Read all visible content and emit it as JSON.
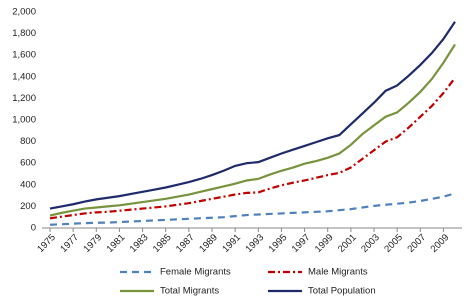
{
  "chart_data": {
    "type": "line",
    "x": [
      1975,
      1976,
      1977,
      1978,
      1979,
      1980,
      1981,
      1982,
      1983,
      1984,
      1985,
      1986,
      1987,
      1988,
      1989,
      1990,
      1991,
      1992,
      1993,
      1994,
      1995,
      1996,
      1997,
      1998,
      1999,
      2000,
      2001,
      2002,
      2003,
      2004,
      2005,
      2006,
      2007,
      2008,
      2009,
      2010
    ],
    "series": [
      {
        "name": "Female Migrants",
        "color": "#4f81bd",
        "dash": "7,5",
        "values": [
          30,
          35,
          40,
          45,
          48,
          50,
          55,
          60,
          65,
          70,
          75,
          80,
          85,
          90,
          95,
          100,
          110,
          120,
          125,
          130,
          135,
          140,
          145,
          150,
          155,
          165,
          175,
          190,
          205,
          215,
          225,
          235,
          250,
          270,
          290,
          320
        ]
      },
      {
        "name": "Male Migrants",
        "color": "#c00000",
        "dash": "7,3,2,3",
        "values": [
          90,
          105,
          120,
          135,
          145,
          150,
          160,
          170,
          180,
          190,
          200,
          215,
          230,
          250,
          270,
          290,
          310,
          325,
          330,
          365,
          395,
          420,
          440,
          465,
          490,
          510,
          560,
          640,
          720,
          800,
          840,
          930,
          1030,
          1130,
          1250,
          1390
        ]
      },
      {
        "name": "Total Migrants",
        "color": "#77933c",
        "dash": "none",
        "values": [
          115,
          140,
          160,
          180,
          190,
          200,
          210,
          225,
          240,
          255,
          270,
          290,
          310,
          335,
          360,
          385,
          410,
          440,
          455,
          495,
          530,
          560,
          595,
          620,
          650,
          690,
          770,
          870,
          950,
          1030,
          1070,
          1160,
          1260,
          1380,
          1530,
          1700
        ]
      },
      {
        "name": "Total Population",
        "color": "#1f2a6b",
        "dash": "none",
        "values": [
          180,
          200,
          220,
          245,
          265,
          280,
          295,
          315,
          335,
          355,
          375,
          400,
          425,
          455,
          490,
          530,
          575,
          600,
          610,
          650,
          690,
          725,
          760,
          795,
          830,
          860,
          960,
          1060,
          1160,
          1270,
          1320,
          1410,
          1510,
          1620,
          1750,
          1910
        ]
      }
    ],
    "xlim": [
      1975,
      2010
    ],
    "xticks": [
      1975,
      1977,
      1979,
      1981,
      1983,
      1985,
      1987,
      1989,
      1991,
      1993,
      1995,
      1997,
      1999,
      2001,
      2003,
      2005,
      2007,
      2009
    ],
    "ylim": [
      0,
      2000
    ],
    "yticks": [
      0,
      200,
      400,
      600,
      800,
      {
        "value": 1000,
        "label": "1,000"
      },
      {
        "value": 1200,
        "label": "1,200"
      },
      {
        "value": 1400,
        "label": "1,400"
      },
      {
        "value": 1600,
        "label": "1,600"
      },
      {
        "value": 1800,
        "label": "1,800"
      },
      {
        "value": 2000,
        "label": "2,000"
      }
    ],
    "grid": false
  }
}
